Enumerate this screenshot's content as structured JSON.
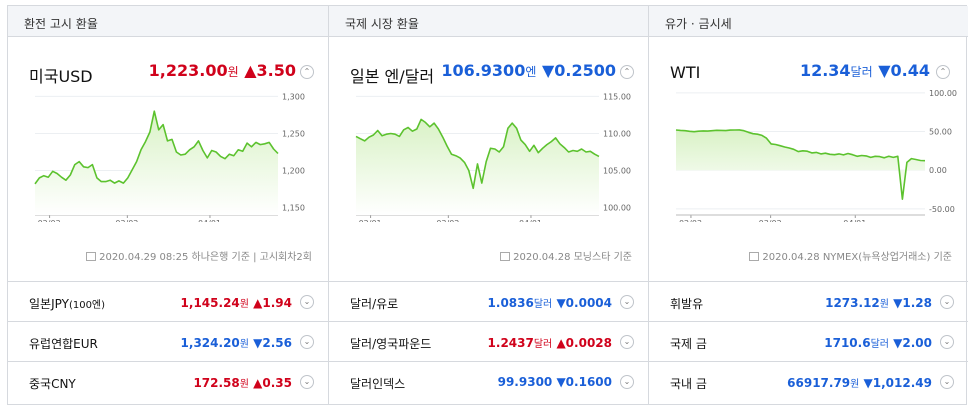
{
  "columns": [
    {
      "header": "환전 고시 환율",
      "main": {
        "title": "미국USD",
        "value": "1,223.00",
        "unit": "원",
        "change": "▲3.50",
        "direction": "up",
        "source": "2020.04.29 08:25 하나은행 기준 | 고시회차2회"
      },
      "rows": [
        {
          "label": "일본JPY",
          "sub": "(100엔)",
          "value": "1,145.24",
          "unit": "원",
          "change": "▲1.94",
          "direction": "up"
        },
        {
          "label": "유럽연합EUR",
          "sub": "",
          "value": "1,324.20",
          "unit": "원",
          "change": "▼2.56",
          "direction": "down"
        },
        {
          "label": "중국CNY",
          "sub": "",
          "value": "172.58",
          "unit": "원",
          "change": "▲0.35",
          "direction": "up"
        }
      ]
    },
    {
      "header": "국제 시장 환율",
      "main": {
        "title": "일본 엔/달러",
        "value": "106.9300",
        "unit": "엔",
        "change": "▼0.2500",
        "direction": "down",
        "source": "2020.04.28 모닝스타 기준"
      },
      "rows": [
        {
          "label": "달러/유로",
          "sub": "",
          "value": "1.0836",
          "unit": "달러",
          "change": "▼0.0004",
          "direction": "down"
        },
        {
          "label": "달러/영국파운드",
          "sub": "",
          "value": "1.2437",
          "unit": "달러",
          "change": "▲0.0028",
          "direction": "up"
        },
        {
          "label": "달러인덱스",
          "sub": "",
          "value": "99.9300",
          "unit": "",
          "change": "▼0.1600",
          "direction": "down"
        }
      ]
    },
    {
      "header": "유가 · 금시세",
      "main": {
        "title": "WTI",
        "value": "12.34",
        "unit": "달러",
        "change": "▼0.44",
        "direction": "down",
        "source": "2020.04.28 NYMEX(뉴욕상업거래소) 기준"
      },
      "rows": [
        {
          "label": "휘발유",
          "sub": "",
          "value": "1273.12",
          "unit": "원",
          "change": "▼1.28",
          "direction": "down"
        },
        {
          "label": "국제 금",
          "sub": "",
          "value": "1710.6",
          "unit": "달러",
          "change": "▼2.00",
          "direction": "down"
        },
        {
          "label": "국내 금",
          "sub": "",
          "value": "66917.79",
          "unit": "원",
          "change": "▼1,012.49",
          "direction": "down"
        }
      ]
    }
  ],
  "icons": {
    "expand": "chevron-up-icon",
    "row_expand": "chevron-down-icon",
    "source": "document-icon"
  },
  "colors": {
    "up": "#d0021b",
    "down": "#1a5fd8",
    "line": "#5cc22e",
    "fill_top": "#d9f2c6",
    "fill_bottom": "#ffffff"
  },
  "chart_data": [
    {
      "type": "area",
      "x_ticks": [
        "02/03",
        "03/02",
        "04/01"
      ],
      "y_ticks": [
        "1,150",
        "1,200",
        "1,250",
        "1,300"
      ],
      "ylim": [
        1140,
        1310
      ],
      "grid": true,
      "values": [
        1182,
        1190,
        1193,
        1191,
        1199,
        1196,
        1191,
        1187,
        1194,
        1208,
        1212,
        1205,
        1204,
        1208,
        1190,
        1185,
        1185,
        1187,
        1183,
        1186,
        1183,
        1190,
        1201,
        1212,
        1228,
        1239,
        1252,
        1280,
        1255,
        1262,
        1240,
        1242,
        1225,
        1221,
        1222,
        1228,
        1232,
        1240,
        1227,
        1217,
        1227,
        1225,
        1219,
        1216,
        1222,
        1220,
        1228,
        1226,
        1237,
        1232,
        1238,
        1235,
        1236,
        1238,
        1229,
        1223
      ]
    },
    {
      "type": "area",
      "x_ticks": [
        "02/01",
        "03/02",
        "04/01"
      ],
      "y_ticks": [
        "100.00",
        "105.00",
        "110.00",
        "115.00"
      ],
      "ylim": [
        99,
        116
      ],
      "grid": true,
      "values": [
        109.6,
        109.3,
        109.0,
        109.5,
        109.8,
        110.4,
        109.7,
        109.9,
        110.0,
        109.9,
        109.6,
        110.5,
        110.8,
        110.3,
        110.6,
        111.9,
        111.5,
        110.9,
        111.4,
        110.6,
        109.5,
        108.3,
        107.2,
        107.0,
        106.7,
        106.1,
        105.0,
        102.6,
        105.9,
        103.3,
        106.2,
        108.0,
        107.9,
        107.5,
        108.2,
        110.7,
        111.4,
        110.7,
        109.1,
        108.5,
        107.6,
        108.4,
        107.4,
        108.0,
        108.5,
        108.9,
        109.4,
        108.6,
        108.1,
        107.5,
        107.7,
        107.6,
        107.9,
        107.5,
        107.6,
        107.2,
        106.9
      ]
    },
    {
      "type": "area",
      "x_ticks": [
        "02/03",
        "03/02",
        "04/01"
      ],
      "y_ticks": [
        "-50.00",
        "0.00",
        "50.00",
        "100.00"
      ],
      "ylim": [
        -58,
        105
      ],
      "grid": true,
      "values": [
        52.0,
        51.5,
        51.0,
        50.3,
        49.8,
        50.4,
        50.8,
        50.5,
        51.0,
        51.6,
        51.4,
        51.2,
        51.8,
        52.0,
        52.1,
        51.0,
        49.0,
        47.2,
        46.5,
        45.0,
        41.3,
        34.0,
        33.2,
        31.7,
        30.0,
        28.7,
        27.0,
        24.0,
        25.0,
        24.5,
        22.4,
        23.0,
        21.0,
        22.0,
        20.5,
        20.0,
        21.0,
        19.8,
        21.5,
        20.0,
        18.0,
        19.0,
        18.5,
        16.5,
        18.0,
        17.5,
        16.0,
        18.0,
        16.5,
        18.0,
        -37.6,
        10.0,
        15.0,
        13.8,
        12.5,
        12.3
      ]
    }
  ]
}
